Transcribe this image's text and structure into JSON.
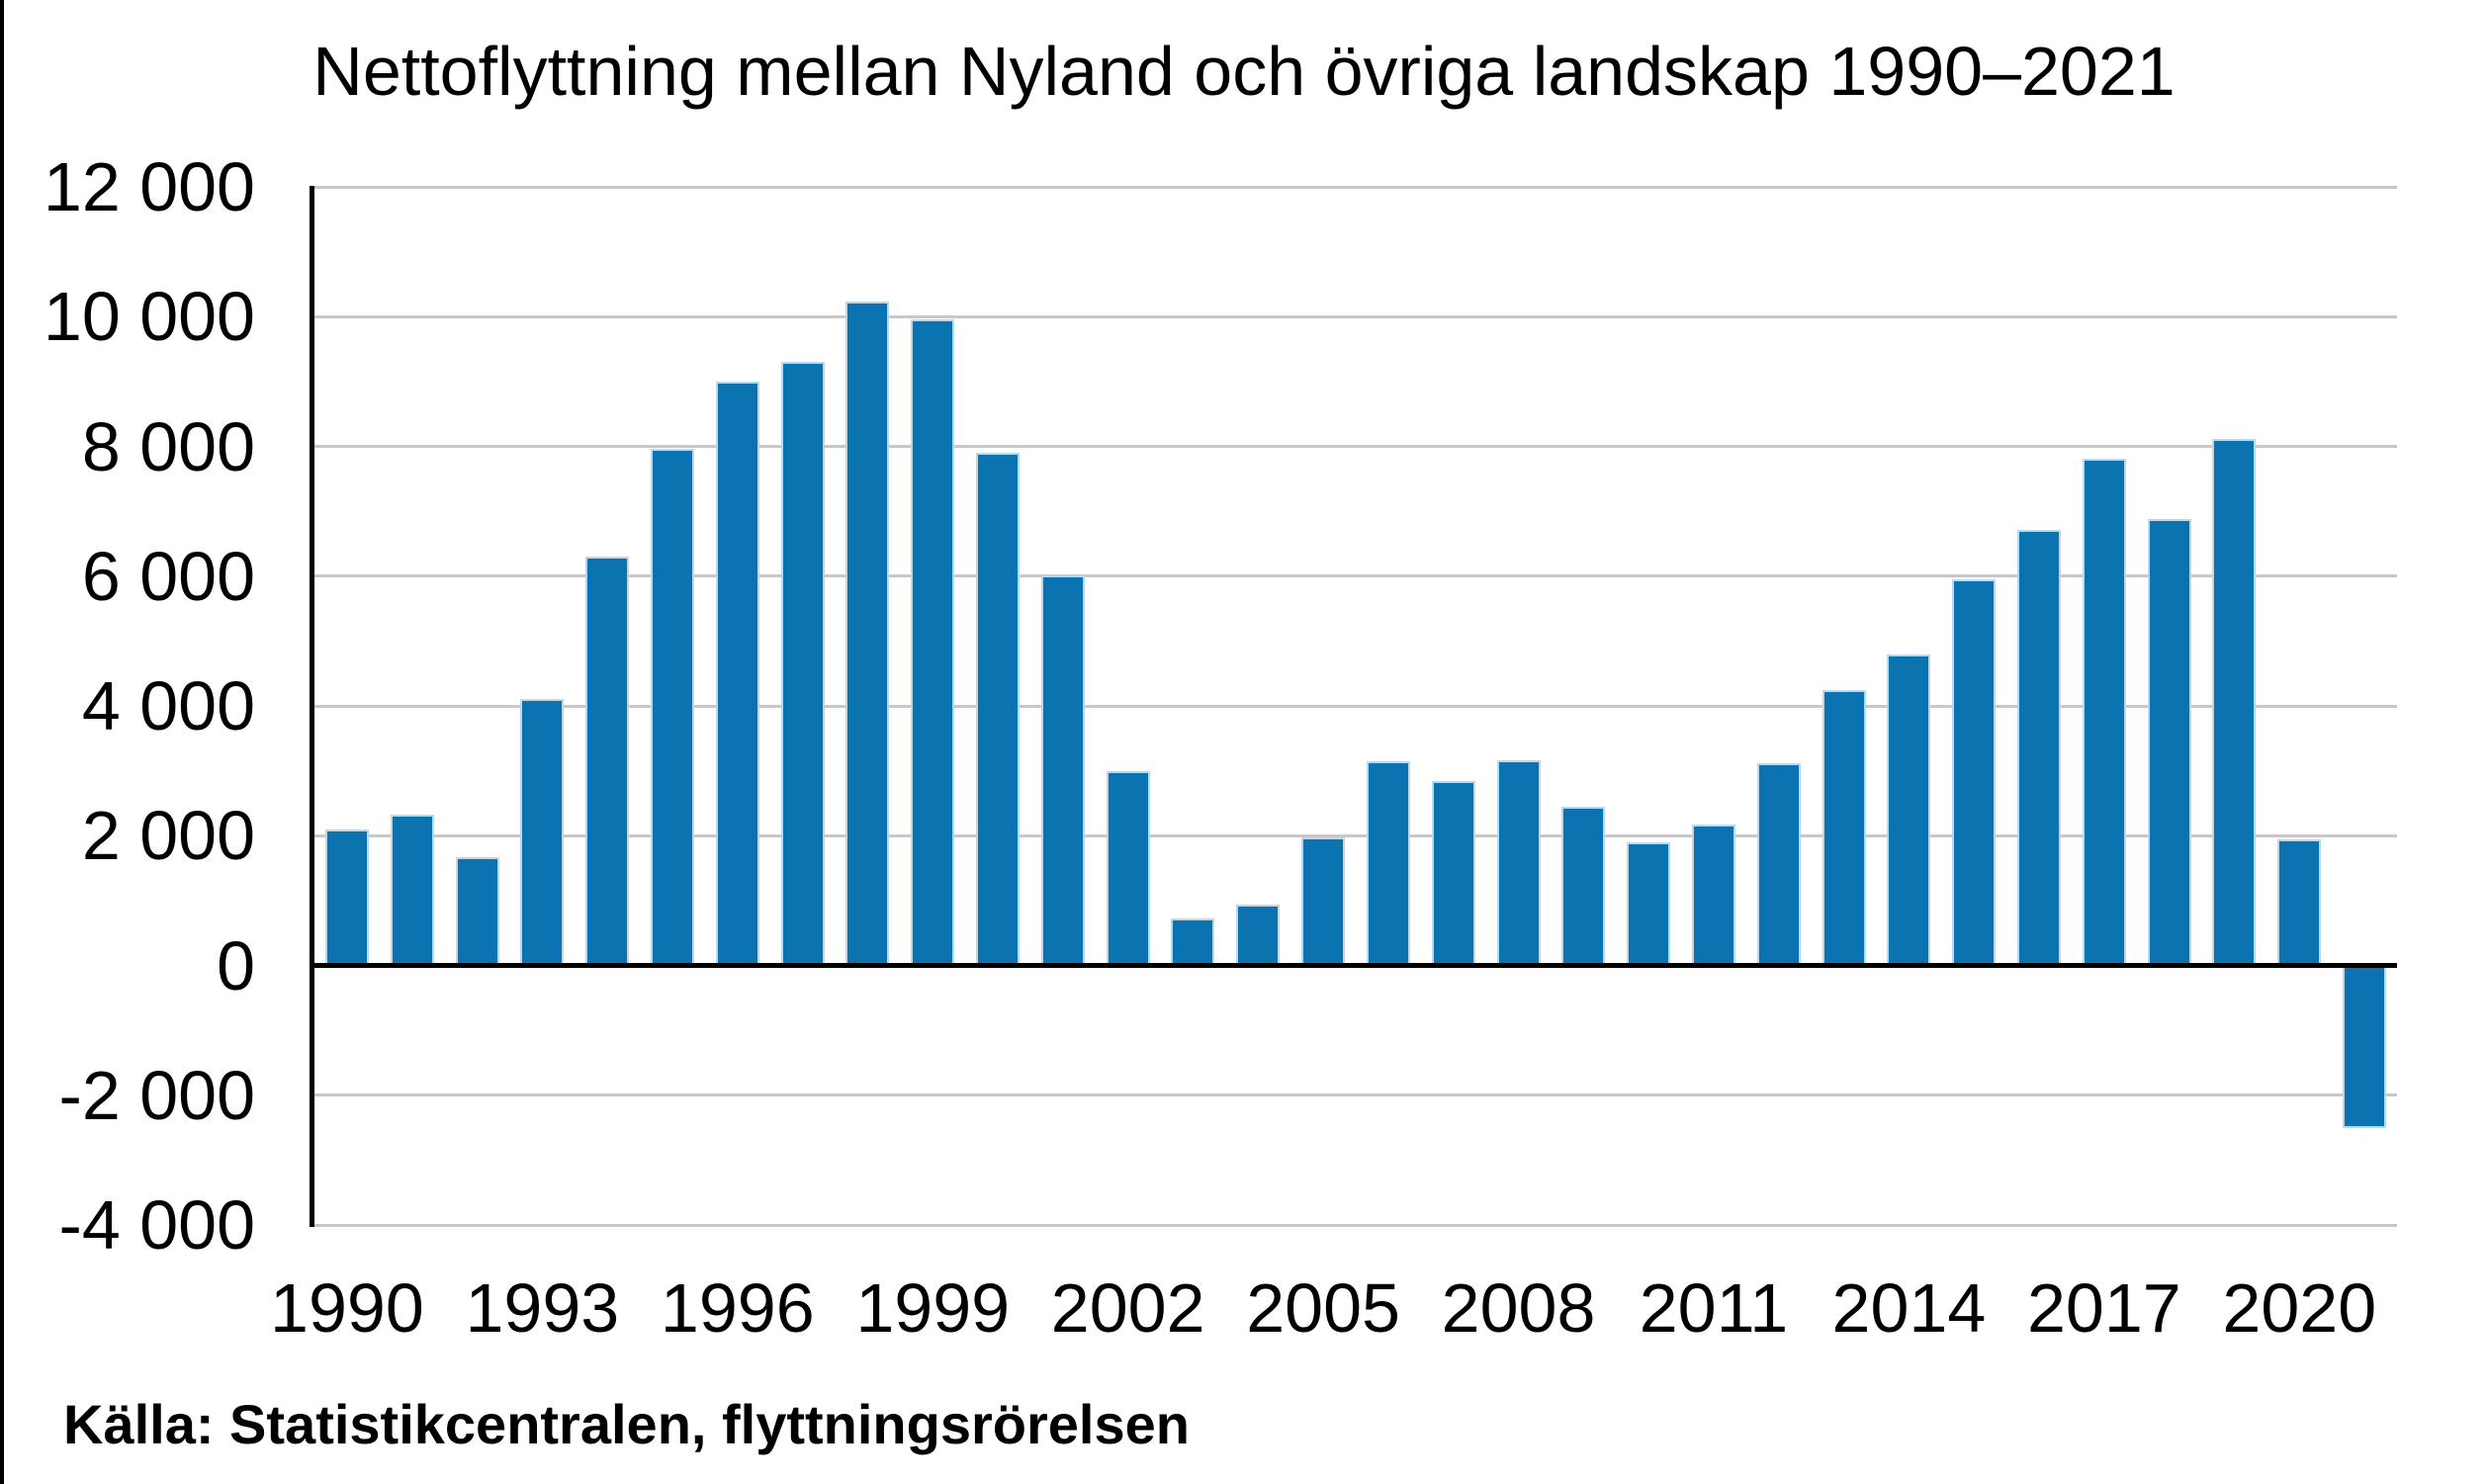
{
  "page": {
    "background": "#ffffff",
    "left_border_color": "#000000"
  },
  "chart_data": {
    "type": "bar",
    "title": "Nettoflyttning mellan Nyland och övriga landskap 1990–2021",
    "source": "Källa: Statistikcentralen, flyttningsrörelsen",
    "categories": [
      "1990",
      "1991",
      "1992",
      "1993",
      "1994",
      "1995",
      "1996",
      "1997",
      "1998",
      "1999",
      "2000",
      "2001",
      "2002",
      "2003",
      "2004",
      "2005",
      "2006",
      "2007",
      "2008",
      "2009",
      "2010",
      "2011",
      "2012",
      "2013",
      "2014",
      "2015",
      "2016",
      "2017",
      "2018",
      "2019",
      "2020",
      "2021"
    ],
    "values": [
      2100,
      2330,
      1670,
      4100,
      6300,
      7960,
      9000,
      9300,
      10230,
      9960,
      7900,
      6010,
      3000,
      720,
      940,
      1970,
      3150,
      2840,
      3160,
      2440,
      1890,
      2170,
      3120,
      4250,
      4800,
      5950,
      6710,
      7810,
      6880,
      8120,
      1940,
      -2500
    ],
    "xlabel": "",
    "ylabel": "",
    "ylim": [
      -4000,
      12000
    ],
    "ytick_interval": 2000,
    "ytick_values": [
      12000,
      10000,
      8000,
      6000,
      4000,
      2000,
      0,
      -2000,
      -4000
    ],
    "ytick_labels": [
      "12 000",
      "10 000",
      "8 000",
      "6 000",
      "4 000",
      "2 000",
      "0",
      "-2 000",
      "-4 000"
    ],
    "xtick_years": [
      "1990",
      "1993",
      "1996",
      "1999",
      "2002",
      "2005",
      "2008",
      "2011",
      "2014",
      "2017",
      "2020"
    ],
    "grid": "horizontal",
    "legend": "none",
    "bar_color": "#0b74b0",
    "bar_edge_color": "#bdd7ea",
    "gridline_color": "#c8c8c8",
    "axis_color": "#000000",
    "text_color": "#000000"
  }
}
